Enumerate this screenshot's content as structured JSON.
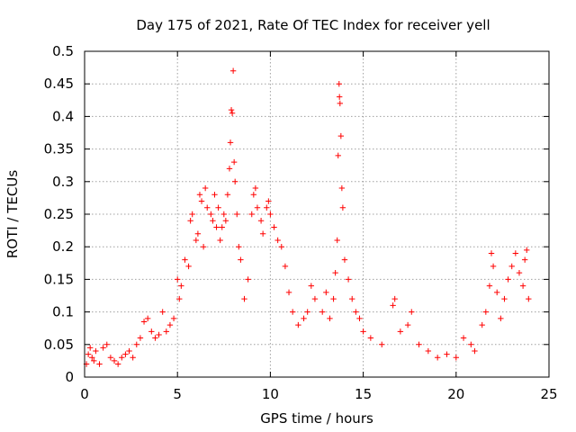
{
  "chart_data": {
    "type": "scatter",
    "title": "Day 175 of 2021, Rate Of TEC Index for receiver yell",
    "xlabel": "GPS time / hours",
    "ylabel": "ROTI / TECUs",
    "xlim": [
      0,
      25
    ],
    "ylim": [
      0,
      0.5
    ],
    "xticks": [
      0,
      5,
      10,
      15,
      20,
      25
    ],
    "yticks": [
      0,
      0.05,
      0.1,
      0.15,
      0.2,
      0.25,
      0.3,
      0.35,
      0.4,
      0.45,
      0.5
    ],
    "xtick_labels": [
      "0",
      "5",
      "10",
      "15",
      "20",
      "25"
    ],
    "ytick_labels": [
      "0",
      "0.05",
      "0.1",
      "0.15",
      "0.2",
      "0.25",
      "0.3",
      "0.35",
      "0.4",
      "0.45",
      "0.5"
    ],
    "grid": true,
    "marker": "+",
    "color": "#ff0000",
    "series": [
      {
        "name": "ROTI",
        "points": [
          [
            0.1,
            0.02
          ],
          [
            0.2,
            0.035
          ],
          [
            0.3,
            0.045
          ],
          [
            0.4,
            0.03
          ],
          [
            0.5,
            0.025
          ],
          [
            0.6,
            0.04
          ],
          [
            0.8,
            0.02
          ],
          [
            1.0,
            0.045
          ],
          [
            1.2,
            0.05
          ],
          [
            1.4,
            0.03
          ],
          [
            1.6,
            0.025
          ],
          [
            1.8,
            0.02
          ],
          [
            2.0,
            0.03
          ],
          [
            2.2,
            0.035
          ],
          [
            2.4,
            0.04
          ],
          [
            2.6,
            0.03
          ],
          [
            2.8,
            0.05
          ],
          [
            3.0,
            0.06
          ],
          [
            3.2,
            0.085
          ],
          [
            3.4,
            0.09
          ],
          [
            3.6,
            0.07
          ],
          [
            3.8,
            0.06
          ],
          [
            4.0,
            0.065
          ],
          [
            4.2,
            0.1
          ],
          [
            4.4,
            0.07
          ],
          [
            4.6,
            0.08
          ],
          [
            4.8,
            0.09
          ],
          [
            5.0,
            0.15
          ],
          [
            5.1,
            0.12
          ],
          [
            5.2,
            0.14
          ],
          [
            5.4,
            0.18
          ],
          [
            5.6,
            0.17
          ],
          [
            5.7,
            0.24
          ],
          [
            5.8,
            0.25
          ],
          [
            6.0,
            0.21
          ],
          [
            6.1,
            0.22
          ],
          [
            6.2,
            0.28
          ],
          [
            6.3,
            0.27
          ],
          [
            6.4,
            0.2
          ],
          [
            6.5,
            0.29
          ],
          [
            6.6,
            0.26
          ],
          [
            6.8,
            0.25
          ],
          [
            6.9,
            0.24
          ],
          [
            7.0,
            0.28
          ],
          [
            7.1,
            0.23
          ],
          [
            7.2,
            0.26
          ],
          [
            7.3,
            0.21
          ],
          [
            7.4,
            0.23
          ],
          [
            7.5,
            0.25
          ],
          [
            7.6,
            0.24
          ],
          [
            7.7,
            0.28
          ],
          [
            7.8,
            0.32
          ],
          [
            7.85,
            0.36
          ],
          [
            7.9,
            0.41
          ],
          [
            7.95,
            0.405
          ],
          [
            8.0,
            0.47
          ],
          [
            8.05,
            0.33
          ],
          [
            8.1,
            0.3
          ],
          [
            8.2,
            0.25
          ],
          [
            8.3,
            0.2
          ],
          [
            8.4,
            0.18
          ],
          [
            8.6,
            0.12
          ],
          [
            8.8,
            0.15
          ],
          [
            9.0,
            0.25
          ],
          [
            9.1,
            0.28
          ],
          [
            9.2,
            0.29
          ],
          [
            9.3,
            0.26
          ],
          [
            9.5,
            0.24
          ],
          [
            9.6,
            0.22
          ],
          [
            9.8,
            0.26
          ],
          [
            9.9,
            0.27
          ],
          [
            10.0,
            0.25
          ],
          [
            10.2,
            0.23
          ],
          [
            10.4,
            0.21
          ],
          [
            10.6,
            0.2
          ],
          [
            10.8,
            0.17
          ],
          [
            11.0,
            0.13
          ],
          [
            11.2,
            0.1
          ],
          [
            11.5,
            0.08
          ],
          [
            11.8,
            0.09
          ],
          [
            12.0,
            0.1
          ],
          [
            12.2,
            0.14
          ],
          [
            12.4,
            0.12
          ],
          [
            12.8,
            0.1
          ],
          [
            13.0,
            0.13
          ],
          [
            13.2,
            0.09
          ],
          [
            13.4,
            0.12
          ],
          [
            13.5,
            0.16
          ],
          [
            13.6,
            0.21
          ],
          [
            13.65,
            0.34
          ],
          [
            13.7,
            0.45
          ],
          [
            13.72,
            0.43
          ],
          [
            13.75,
            0.42
          ],
          [
            13.8,
            0.37
          ],
          [
            13.85,
            0.29
          ],
          [
            13.9,
            0.26
          ],
          [
            14.0,
            0.18
          ],
          [
            14.2,
            0.15
          ],
          [
            14.4,
            0.12
          ],
          [
            14.6,
            0.1
          ],
          [
            14.8,
            0.09
          ],
          [
            15.0,
            0.07
          ],
          [
            15.4,
            0.06
          ],
          [
            16.0,
            0.05
          ],
          [
            16.6,
            0.11
          ],
          [
            16.7,
            0.12
          ],
          [
            17.0,
            0.07
          ],
          [
            17.4,
            0.08
          ],
          [
            17.6,
            0.1
          ],
          [
            18.0,
            0.05
          ],
          [
            18.5,
            0.04
          ],
          [
            19.0,
            0.03
          ],
          [
            19.5,
            0.035
          ],
          [
            20.0,
            0.03
          ],
          [
            20.4,
            0.06
          ],
          [
            20.8,
            0.05
          ],
          [
            21.0,
            0.04
          ],
          [
            21.4,
            0.08
          ],
          [
            21.6,
            0.1
          ],
          [
            21.8,
            0.14
          ],
          [
            21.9,
            0.19
          ],
          [
            22.0,
            0.17
          ],
          [
            22.2,
            0.13
          ],
          [
            22.4,
            0.09
          ],
          [
            22.6,
            0.12
          ],
          [
            22.8,
            0.15
          ],
          [
            23.0,
            0.17
          ],
          [
            23.2,
            0.19
          ],
          [
            23.4,
            0.16
          ],
          [
            23.6,
            0.14
          ],
          [
            23.7,
            0.18
          ],
          [
            23.8,
            0.195
          ],
          [
            23.9,
            0.12
          ]
        ]
      }
    ]
  }
}
